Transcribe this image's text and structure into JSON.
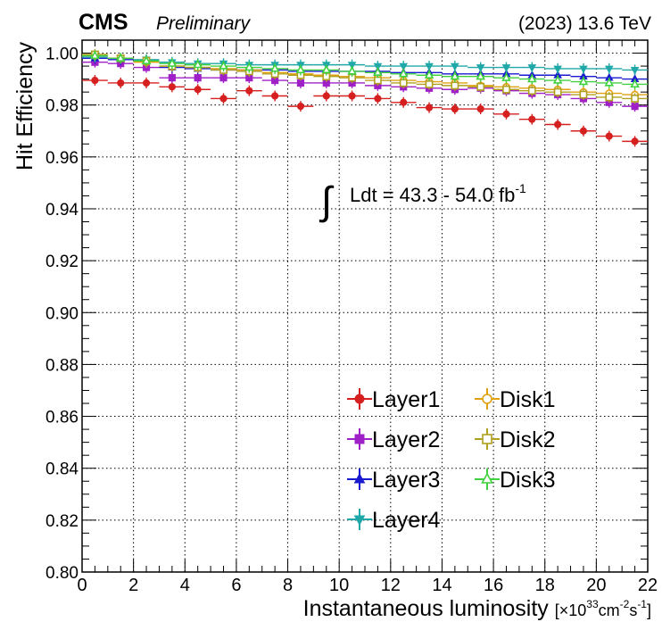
{
  "header": {
    "experiment": "CMS",
    "status": "Preliminary",
    "energy": "(2023) 13.6 TeV"
  },
  "annotation": {
    "integral_symbol": "∫",
    "lumi_prefix": "Ldt = 43.3 - 54.0 fb",
    "lumi_exp": "-1"
  },
  "chart_data": {
    "type": "scatter",
    "title": "",
    "ylabel": "Hit Efficiency",
    "xlabel_main": "Instantaneous luminosity ",
    "xlabel_unit": "[×10",
    "xlabel_exp1": "33",
    "xlabel_mid": "cm",
    "xlabel_exp2": "-2",
    "xlabel_mid2": "s",
    "xlabel_exp3": "-1",
    "xlabel_close": "]",
    "xlim": [
      0,
      22
    ],
    "ylim": [
      0.8,
      1.005
    ],
    "xticks": [
      0,
      2,
      4,
      6,
      8,
      10,
      12,
      14,
      16,
      18,
      20,
      22
    ],
    "yticks": [
      0.8,
      0.82,
      0.84,
      0.86,
      0.88,
      0.9,
      0.92,
      0.94,
      0.96,
      0.98,
      1.0
    ],
    "ytick_labels": [
      "0.80",
      "0.82",
      "0.84",
      "0.86",
      "0.88",
      "0.90",
      "0.92",
      "0.94",
      "0.96",
      "0.98",
      "1.00"
    ],
    "grid": true,
    "legend_position": "bottom-right",
    "x": [
      0.5,
      1.5,
      2.5,
      3.5,
      4.5,
      5.5,
      6.5,
      7.5,
      8.5,
      9.5,
      10.5,
      11.5,
      12.5,
      13.5,
      14.5,
      15.5,
      16.5,
      17.5,
      18.5,
      19.5,
      20.5,
      21.5
    ],
    "series": [
      {
        "name": "Layer1",
        "color": "#d62020",
        "marker": "filled-circle",
        "values": [
          0.9895,
          0.9885,
          0.9885,
          0.987,
          0.986,
          0.9825,
          0.9855,
          0.9835,
          0.9795,
          0.9835,
          0.9835,
          0.9825,
          0.981,
          0.979,
          0.9785,
          0.9785,
          0.9765,
          0.9745,
          0.9725,
          0.97,
          0.968,
          0.966
        ]
      },
      {
        "name": "Layer2",
        "color": "#a020c8",
        "marker": "filled-square",
        "values": [
          0.9965,
          0.996,
          0.9945,
          0.9905,
          0.9905,
          0.9905,
          0.9905,
          0.9895,
          0.9885,
          0.9885,
          0.9885,
          0.9875,
          0.987,
          0.9865,
          0.986,
          0.9865,
          0.9855,
          0.9845,
          0.984,
          0.9825,
          0.981,
          0.9795
        ]
      },
      {
        "name": "Layer3",
        "color": "#1a1ad0",
        "marker": "filled-triangle",
        "values": [
          0.998,
          0.9975,
          0.997,
          0.9945,
          0.994,
          0.9935,
          0.9935,
          0.9935,
          0.993,
          0.993,
          0.993,
          0.993,
          0.9925,
          0.9925,
          0.992,
          0.992,
          0.992,
          0.9915,
          0.9915,
          0.991,
          0.9905,
          0.99
        ]
      },
      {
        "name": "Layer4",
        "color": "#20a8a8",
        "marker": "filled-triangle-down",
        "values": [
          0.9985,
          0.998,
          0.9975,
          0.9965,
          0.996,
          0.996,
          0.9955,
          0.9955,
          0.9955,
          0.9955,
          0.9955,
          0.995,
          0.995,
          0.995,
          0.995,
          0.9945,
          0.9945,
          0.9945,
          0.994,
          0.994,
          0.994,
          0.9935
        ]
      },
      {
        "name": "Disk1",
        "color": "#e0a010",
        "marker": "open-circle",
        "values": [
          0.999,
          0.998,
          0.9965,
          0.995,
          0.9945,
          0.994,
          0.9935,
          0.9925,
          0.992,
          0.9915,
          0.991,
          0.9905,
          0.9895,
          0.989,
          0.9885,
          0.9875,
          0.987,
          0.9865,
          0.986,
          0.985,
          0.9845,
          0.984
        ]
      },
      {
        "name": "Disk2",
        "color": "#b0a020",
        "marker": "open-square",
        "values": [
          0.9995,
          0.998,
          0.997,
          0.995,
          0.9945,
          0.9935,
          0.993,
          0.992,
          0.9915,
          0.991,
          0.9905,
          0.9895,
          0.9885,
          0.988,
          0.9875,
          0.987,
          0.986,
          0.9855,
          0.985,
          0.984,
          0.983,
          0.9825
        ]
      },
      {
        "name": "Disk3",
        "color": "#40d040",
        "marker": "open-triangle",
        "values": [
          0.999,
          0.998,
          0.997,
          0.996,
          0.9955,
          0.995,
          0.9945,
          0.994,
          0.9935,
          0.9935,
          0.993,
          0.9925,
          0.992,
          0.9915,
          0.991,
          0.991,
          0.9905,
          0.99,
          0.9895,
          0.989,
          0.9885,
          0.988
        ]
      }
    ]
  }
}
